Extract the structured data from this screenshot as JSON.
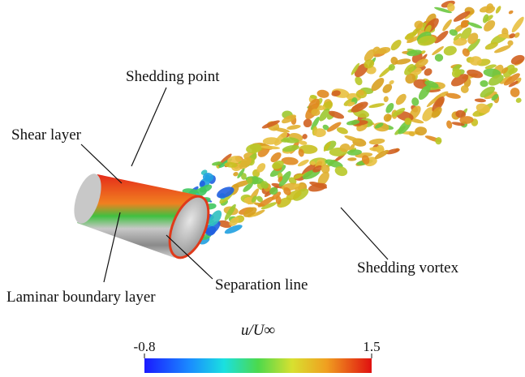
{
  "annotations": {
    "shedding_point": "Shedding point",
    "shear_layer": "Shear layer",
    "laminar_boundary_layer": "Laminar boundary layer",
    "separation_line": "Separation line",
    "shedding_vortex": "Shedding vortex"
  },
  "colorbar": {
    "title": "u/U∞",
    "min": -0.8,
    "max": 1.5
  }
}
